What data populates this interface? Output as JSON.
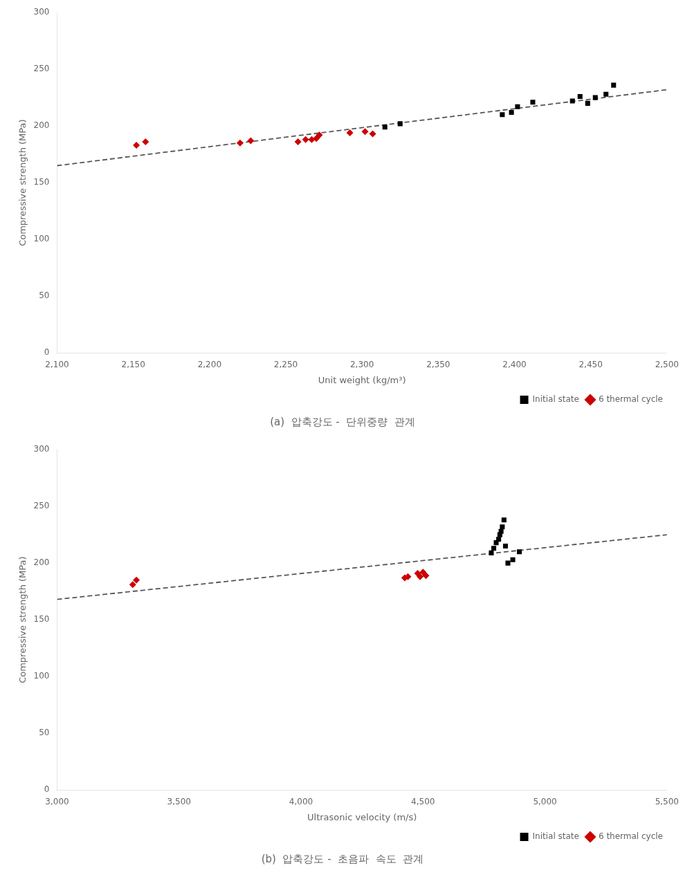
{
  "chart_data": [
    {
      "type": "scatter",
      "title": "(a)  압축강도 -  단위중량  관계",
      "x_label": "Unit weight (kg/m³)",
      "y_label": "Compressive strength (MPa)",
      "xlim": [
        2100,
        2500
      ],
      "ylim": [
        0,
        300
      ],
      "xticks": [
        {
          "value": 2100,
          "label": "2,100"
        },
        {
          "value": 2150,
          "label": "2,150"
        },
        {
          "value": 2200,
          "label": "2,200"
        },
        {
          "value": 2250,
          "label": "2,250"
        },
        {
          "value": 2300,
          "label": "2,300"
        },
        {
          "value": 2350,
          "label": "2,350"
        },
        {
          "value": 2400,
          "label": "2,400"
        },
        {
          "value": 2450,
          "label": "2,450"
        },
        {
          "value": 2500,
          "label": "2,500"
        }
      ],
      "yticks": [
        0,
        50,
        100,
        150,
        200,
        250,
        300
      ],
      "grid": false,
      "legend": "lower right",
      "series": [
        {
          "name": "Initial state",
          "color": "#000000",
          "marker": "square",
          "x": [
            2315,
            2325,
            2392,
            2398,
            2402,
            2412,
            2438,
            2443,
            2448,
            2453,
            2460,
            2465
          ],
          "values": [
            199,
            202,
            210,
            212,
            217,
            221,
            222,
            226,
            220,
            225,
            228,
            236
          ]
        },
        {
          "name": "6 thermal cycle",
          "color": "#cc0000",
          "marker": "diamond",
          "x": [
            2152,
            2158,
            2220,
            2227,
            2258,
            2263,
            2267,
            2270,
            2272,
            2292,
            2302,
            2307
          ],
          "values": [
            183,
            186,
            185,
            187,
            186,
            188,
            188,
            189,
            192,
            194,
            195,
            193
          ]
        }
      ],
      "trendline": {
        "color": "#555555",
        "line_style": "dashed",
        "x": [
          2100,
          2500
        ],
        "values": [
          165,
          232
        ]
      }
    },
    {
      "type": "scatter",
      "title": "(b)  압축강도 -  초음파  속도  관계",
      "x_label": "Ultrasonic velocity (m/s)",
      "y_label": "Compressive strength (MPa)",
      "xlim": [
        3000,
        5500
      ],
      "ylim": [
        0,
        300
      ],
      "xticks": [
        {
          "value": 3000,
          "label": "3,000"
        },
        {
          "value": 3500,
          "label": "3,500"
        },
        {
          "value": 4000,
          "label": "4,000"
        },
        {
          "value": 4500,
          "label": "4,500"
        },
        {
          "value": 5000,
          "label": "5,000"
        },
        {
          "value": 5500,
          "label": "5,500"
        }
      ],
      "yticks": [
        0,
        50,
        100,
        150,
        200,
        250,
        300
      ],
      "grid": false,
      "legend": "lower right",
      "series": [
        {
          "name": "Initial state",
          "color": "#000000",
          "marker": "square",
          "x": [
            4780,
            4790,
            4800,
            4810,
            4815,
            4820,
            4825,
            4832,
            4838,
            4848,
            4868,
            4895
          ],
          "values": [
            209,
            213,
            218,
            221,
            225,
            228,
            232,
            238,
            215,
            200,
            203,
            210
          ]
        },
        {
          "name": "6 thermal cycle",
          "color": "#cc0000",
          "marker": "diamond",
          "x": [
            3310,
            3325,
            4425,
            4438,
            4478,
            4488,
            4500,
            4512
          ],
          "values": [
            181,
            185,
            187,
            188,
            191,
            188,
            192,
            189
          ]
        }
      ],
      "trendline": {
        "color": "#555555",
        "line_style": "dashed",
        "x": [
          3000,
          5500
        ],
        "values": [
          168,
          225
        ]
      }
    }
  ]
}
